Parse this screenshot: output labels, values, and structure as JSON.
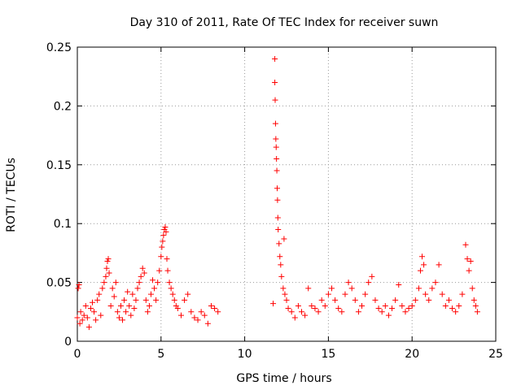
{
  "chart_data": {
    "type": "scatter",
    "title": "Day 310 of 2011, Rate Of TEC Index for receiver suwn",
    "xlabel": "GPS time / hours",
    "ylabel": "ROTI / TECUs",
    "xlim": [
      0,
      25
    ],
    "ylim": [
      0,
      0.25
    ],
    "xticks": [
      0,
      5,
      10,
      15,
      20,
      25
    ],
    "yticks": [
      0,
      0.05,
      0.1,
      0.15,
      0.2,
      0.25
    ],
    "xtick_labels": [
      "0",
      "5",
      "10",
      "15",
      "20",
      "25"
    ],
    "ytick_labels": [
      "0",
      "0.05",
      "0.1",
      "0.15",
      "0.2",
      "0.25"
    ],
    "grid": true,
    "marker": "+",
    "color": "#ff0000",
    "series": [
      {
        "values": [
          [
            0.0,
            0.02
          ],
          [
            0.05,
            0.045
          ],
          [
            0.1,
            0.048
          ],
          [
            0.15,
            0.015
          ],
          [
            0.2,
            0.025
          ],
          [
            0.3,
            0.018
          ],
          [
            0.4,
            0.022
          ],
          [
            0.5,
            0.03
          ],
          [
            0.6,
            0.02
          ],
          [
            0.7,
            0.012
          ],
          [
            0.8,
            0.028
          ],
          [
            0.9,
            0.033
          ],
          [
            1.0,
            0.025
          ],
          [
            1.1,
            0.018
          ],
          [
            1.2,
            0.035
          ],
          [
            1.3,
            0.04
          ],
          [
            1.4,
            0.022
          ],
          [
            1.5,
            0.045
          ],
          [
            1.6,
            0.05
          ],
          [
            1.7,
            0.055
          ],
          [
            1.75,
            0.062
          ],
          [
            1.8,
            0.068
          ],
          [
            1.85,
            0.07
          ],
          [
            1.9,
            0.058
          ],
          [
            2.0,
            0.03
          ],
          [
            2.1,
            0.045
          ],
          [
            2.2,
            0.038
          ],
          [
            2.3,
            0.05
          ],
          [
            2.4,
            0.025
          ],
          [
            2.5,
            0.02
          ],
          [
            2.6,
            0.03
          ],
          [
            2.7,
            0.018
          ],
          [
            2.8,
            0.035
          ],
          [
            2.9,
            0.025
          ],
          [
            3.0,
            0.042
          ],
          [
            3.1,
            0.03
          ],
          [
            3.2,
            0.022
          ],
          [
            3.3,
            0.04
          ],
          [
            3.4,
            0.028
          ],
          [
            3.5,
            0.035
          ],
          [
            3.6,
            0.045
          ],
          [
            3.7,
            0.05
          ],
          [
            3.8,
            0.055
          ],
          [
            3.9,
            0.062
          ],
          [
            4.0,
            0.058
          ],
          [
            4.1,
            0.035
          ],
          [
            4.2,
            0.025
          ],
          [
            4.3,
            0.03
          ],
          [
            4.4,
            0.04
          ],
          [
            4.5,
            0.052
          ],
          [
            4.6,
            0.045
          ],
          [
            4.7,
            0.035
          ],
          [
            4.8,
            0.05
          ],
          [
            4.9,
            0.06
          ],
          [
            5.0,
            0.072
          ],
          [
            5.05,
            0.08
          ],
          [
            5.1,
            0.085
          ],
          [
            5.15,
            0.09
          ],
          [
            5.2,
            0.095
          ],
          [
            5.25,
            0.097
          ],
          [
            5.3,
            0.093
          ],
          [
            5.35,
            0.07
          ],
          [
            5.4,
            0.06
          ],
          [
            5.5,
            0.05
          ],
          [
            5.6,
            0.045
          ],
          [
            5.7,
            0.04
          ],
          [
            5.8,
            0.035
          ],
          [
            5.9,
            0.03
          ],
          [
            6.0,
            0.028
          ],
          [
            6.2,
            0.022
          ],
          [
            6.4,
            0.035
          ],
          [
            6.6,
            0.04
          ],
          [
            6.8,
            0.025
          ],
          [
            7.0,
            0.02
          ],
          [
            7.2,
            0.018
          ],
          [
            7.4,
            0.025
          ],
          [
            7.6,
            0.022
          ],
          [
            7.8,
            0.015
          ],
          [
            8.0,
            0.03
          ],
          [
            8.2,
            0.028
          ],
          [
            8.4,
            0.025
          ],
          [
            11.7,
            0.032
          ],
          [
            11.8,
            0.22
          ],
          [
            11.8,
            0.24
          ],
          [
            11.82,
            0.205
          ],
          [
            11.84,
            0.185
          ],
          [
            11.86,
            0.172
          ],
          [
            11.88,
            0.165
          ],
          [
            11.9,
            0.155
          ],
          [
            11.92,
            0.145
          ],
          [
            11.94,
            0.13
          ],
          [
            11.96,
            0.12
          ],
          [
            11.98,
            0.105
          ],
          [
            12.0,
            0.095
          ],
          [
            12.05,
            0.083
          ],
          [
            12.1,
            0.072
          ],
          [
            12.15,
            0.065
          ],
          [
            12.2,
            0.055
          ],
          [
            12.3,
            0.045
          ],
          [
            12.35,
            0.087
          ],
          [
            12.4,
            0.04
          ],
          [
            12.5,
            0.035
          ],
          [
            12.6,
            0.028
          ],
          [
            12.8,
            0.025
          ],
          [
            13.0,
            0.02
          ],
          [
            13.2,
            0.03
          ],
          [
            13.4,
            0.025
          ],
          [
            13.6,
            0.022
          ],
          [
            13.8,
            0.045
          ],
          [
            14.0,
            0.03
          ],
          [
            14.2,
            0.028
          ],
          [
            14.4,
            0.025
          ],
          [
            14.6,
            0.035
          ],
          [
            14.8,
            0.03
          ],
          [
            15.0,
            0.04
          ],
          [
            15.2,
            0.045
          ],
          [
            15.4,
            0.035
          ],
          [
            15.6,
            0.028
          ],
          [
            15.8,
            0.025
          ],
          [
            16.0,
            0.04
          ],
          [
            16.2,
            0.05
          ],
          [
            16.4,
            0.045
          ],
          [
            16.6,
            0.035
          ],
          [
            16.8,
            0.025
          ],
          [
            17.0,
            0.03
          ],
          [
            17.2,
            0.04
          ],
          [
            17.4,
            0.05
          ],
          [
            17.6,
            0.055
          ],
          [
            17.8,
            0.035
          ],
          [
            18.0,
            0.028
          ],
          [
            18.2,
            0.025
          ],
          [
            18.4,
            0.03
          ],
          [
            18.6,
            0.022
          ],
          [
            18.8,
            0.028
          ],
          [
            19.0,
            0.035
          ],
          [
            19.2,
            0.048
          ],
          [
            19.4,
            0.03
          ],
          [
            19.6,
            0.025
          ],
          [
            19.8,
            0.028
          ],
          [
            20.0,
            0.03
          ],
          [
            20.2,
            0.035
          ],
          [
            20.4,
            0.045
          ],
          [
            20.5,
            0.06
          ],
          [
            20.6,
            0.072
          ],
          [
            20.7,
            0.065
          ],
          [
            20.8,
            0.04
          ],
          [
            21.0,
            0.035
          ],
          [
            21.2,
            0.045
          ],
          [
            21.4,
            0.05
          ],
          [
            21.6,
            0.065
          ],
          [
            21.8,
            0.04
          ],
          [
            22.0,
            0.03
          ],
          [
            22.2,
            0.035
          ],
          [
            22.4,
            0.028
          ],
          [
            22.6,
            0.025
          ],
          [
            22.8,
            0.03
          ],
          [
            23.0,
            0.04
          ],
          [
            23.2,
            0.082
          ],
          [
            23.3,
            0.07
          ],
          [
            23.4,
            0.06
          ],
          [
            23.5,
            0.068
          ],
          [
            23.6,
            0.045
          ],
          [
            23.7,
            0.035
          ],
          [
            23.8,
            0.03
          ],
          [
            23.9,
            0.025
          ]
        ]
      }
    ]
  }
}
